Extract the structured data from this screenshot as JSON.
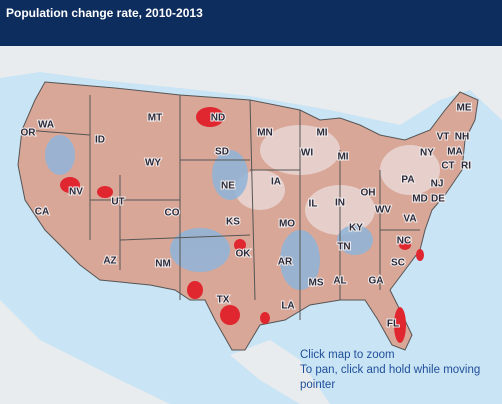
{
  "header": {
    "title": "Population change rate, 2010-2013"
  },
  "map": {
    "state_labels": [
      "WA",
      "OR",
      "ID",
      "MT",
      "ND",
      "MN",
      "WI",
      "MI",
      "MI",
      "SD",
      "WY",
      "NV",
      "CA",
      "UT",
      "CO",
      "NE",
      "IA",
      "IL",
      "IN",
      "OH",
      "PA",
      "NY",
      "VT",
      "NH",
      "ME",
      "MA",
      "CT",
      "RI",
      "NJ",
      "MD",
      "DE",
      "WV",
      "VA",
      "KY",
      "KS",
      "MO",
      "TN",
      "NC",
      "SC",
      "GA",
      "AL",
      "MS",
      "AR",
      "OK",
      "NM",
      "AZ",
      "TX",
      "LA",
      "FL"
    ],
    "instructions": [
      "Click map to zoom",
      "To pan, click and hold while moving",
      "pointer"
    ]
  }
}
